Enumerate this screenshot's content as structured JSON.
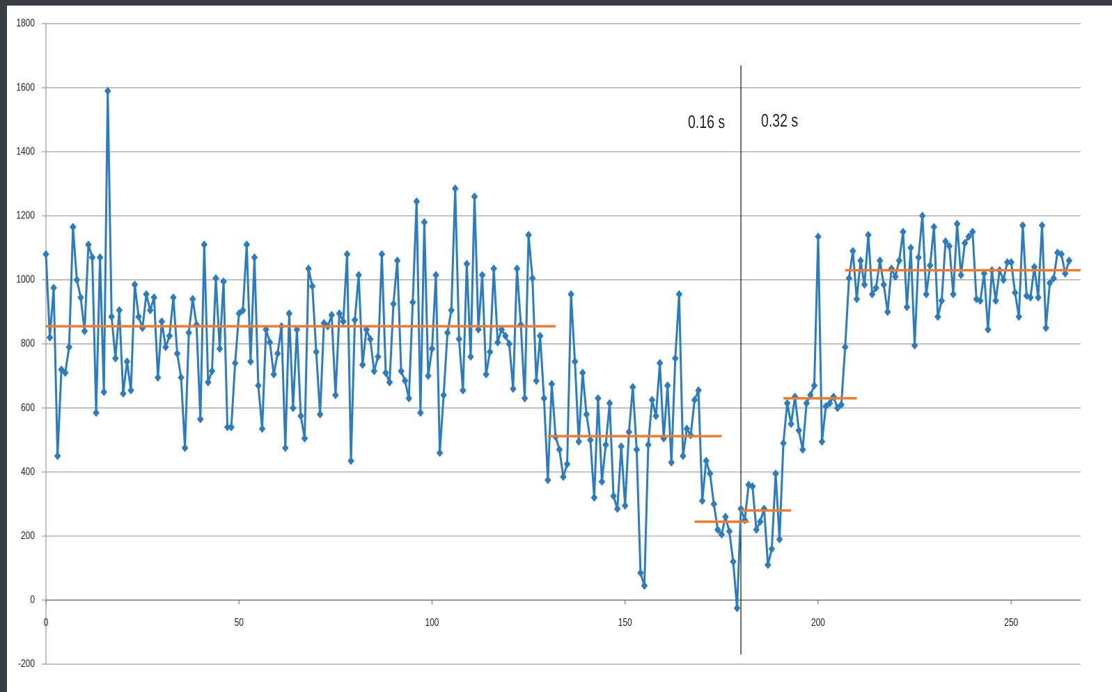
{
  "chart_data": {
    "type": "line",
    "annotations": [
      "0.16 s",
      "0.32 s"
    ],
    "xlim": [
      0,
      268
    ],
    "ylim": [
      -200,
      1800
    ],
    "xticks": [
      0,
      50,
      100,
      150,
      200,
      250
    ],
    "yticks": [
      -200,
      0,
      200,
      400,
      600,
      800,
      1000,
      1200,
      1400,
      1600,
      1800
    ],
    "grid": true,
    "x": [
      0,
      1,
      2,
      3,
      4,
      5,
      6,
      7,
      8,
      9,
      10,
      11,
      12,
      13,
      14,
      15,
      16,
      17,
      18,
      19,
      20,
      21,
      22,
      23,
      24,
      25,
      26,
      27,
      28,
      29,
      30,
      31,
      32,
      33,
      34,
      35,
      36,
      37,
      38,
      39,
      40,
      41,
      42,
      43,
      44,
      45,
      46,
      47,
      48,
      49,
      50,
      51,
      52,
      53,
      54,
      55,
      56,
      57,
      58,
      59,
      60,
      61,
      62,
      63,
      64,
      65,
      66,
      67,
      68,
      69,
      70,
      71,
      72,
      73,
      74,
      75,
      76,
      77,
      78,
      79,
      80,
      81,
      82,
      83,
      84,
      85,
      86,
      87,
      88,
      89,
      90,
      91,
      92,
      93,
      94,
      95,
      96,
      97,
      98,
      99,
      100,
      101,
      102,
      103,
      104,
      105,
      106,
      107,
      108,
      109,
      110,
      111,
      112,
      113,
      114,
      115,
      116,
      117,
      118,
      119,
      120,
      121,
      122,
      123,
      124,
      125,
      126,
      127,
      128,
      129,
      130,
      131,
      132,
      133,
      134,
      135,
      136,
      137,
      138,
      139,
      140,
      141,
      142,
      143,
      144,
      145,
      146,
      147,
      148,
      149,
      150,
      151,
      152,
      153,
      154,
      155,
      156,
      157,
      158,
      159,
      160,
      161,
      162,
      163,
      164,
      165,
      166,
      167,
      168,
      169,
      170,
      171,
      172,
      173,
      174,
      175,
      176,
      177,
      178,
      179,
      180,
      181,
      182,
      183,
      184,
      185,
      186,
      187,
      188,
      189,
      190,
      191,
      192,
      193,
      194,
      195,
      196,
      197,
      198,
      199,
      200,
      201,
      202,
      203,
      204,
      205,
      206,
      207,
      208,
      209,
      210,
      211,
      212,
      213,
      214,
      215,
      216,
      217,
      218,
      219,
      220,
      221,
      222,
      223,
      224,
      225,
      226,
      227,
      228,
      229,
      230,
      231,
      232,
      233,
      234,
      235,
      236,
      237,
      238,
      239,
      240,
      241,
      242,
      243,
      244,
      245,
      246,
      247,
      248,
      249,
      250,
      251,
      252,
      253,
      254,
      255,
      256,
      257,
      258,
      259,
      260,
      261,
      262,
      263,
      264,
      265
    ],
    "series": [
      {
        "color": "#2b7dc0",
        "values": [
          1080,
          820,
          975,
          450,
          720,
          710,
          790,
          1165,
          1000,
          945,
          840,
          1110,
          1070,
          585,
          1070,
          650,
          1590,
          885,
          755,
          905,
          645,
          745,
          655,
          985,
          885,
          850,
          955,
          905,
          945,
          695,
          870,
          790,
          825,
          945,
          770,
          695,
          475,
          835,
          940,
          860,
          565,
          1110,
          680,
          715,
          1005,
          785,
          995,
          540,
          540,
          740,
          895,
          905,
          1110,
          745,
          1070,
          670,
          535,
          845,
          805,
          705,
          770,
          855,
          475,
          895,
          600,
          845,
          575,
          505,
          1035,
          980,
          775,
          580,
          865,
          855,
          890,
          640,
          895,
          870,
          1080,
          435,
          875,
          1015,
          735,
          845,
          815,
          715,
          760,
          1080,
          710,
          680,
          925,
          1060,
          715,
          685,
          630,
          930,
          1245,
          585,
          1180,
          700,
          785,
          1015,
          460,
          640,
          835,
          905,
          1285,
          815,
          655,
          1050,
          760,
          1260,
          845,
          1015,
          705,
          775,
          1035,
          805,
          845,
          825,
          800,
          660,
          1035,
          860,
          630,
          1140,
          1005,
          685,
          825,
          630,
          375,
          675,
          510,
          470,
          385,
          425,
          955,
          745,
          495,
          710,
          580,
          500,
          320,
          630,
          370,
          485,
          615,
          325,
          285,
          480,
          295,
          525,
          665,
          470,
          85,
          45,
          485,
          625,
          575,
          740,
          505,
          670,
          430,
          755,
          955,
          450,
          535,
          515,
          625,
          655,
          310,
          435,
          395,
          300,
          220,
          205,
          260,
          215,
          120,
          -25,
          285,
          250,
          360,
          355,
          220,
          245,
          285,
          110,
          160,
          395,
          190,
          490,
          615,
          550,
          635,
          530,
          470,
          615,
          640,
          670,
          1135,
          495,
          605,
          615,
          635,
          600,
          610,
          790,
          1005,
          1090,
          940,
          1060,
          985,
          1140,
          955,
          975,
          1060,
          985,
          900,
          1035,
          1010,
          1060,
          1150,
          915,
          1100,
          795,
          1070,
          1200,
          955,
          1045,
          1165,
          885,
          935,
          1120,
          1105,
          955,
          1175,
          1015,
          1115,
          1135,
          1150,
          940,
          935,
          1020,
          845,
          1030,
          935,
          1030,
          1000,
          1055,
          1055,
          960,
          885,
          1170,
          950,
          945,
          1040,
          945,
          1170,
          850,
          990,
          1005,
          1085,
          1080,
          1020,
          1060
        ]
      }
    ],
    "segments": {
      "color": "#f47a2a",
      "items": [
        {
          "x": [
            0,
            132
          ],
          "value": 855
        },
        {
          "x": [
            130,
            175
          ],
          "value": 512
        },
        {
          "x": [
            168,
            182
          ],
          "value": 245
        },
        {
          "x": [
            180,
            193
          ],
          "value": 280
        },
        {
          "x": [
            191,
            210
          ],
          "value": 630
        },
        {
          "x": [
            207,
            268
          ],
          "value": 1030
        }
      ]
    },
    "vline": {
      "x": 180,
      "range": [
        -170,
        1670
      ]
    }
  }
}
